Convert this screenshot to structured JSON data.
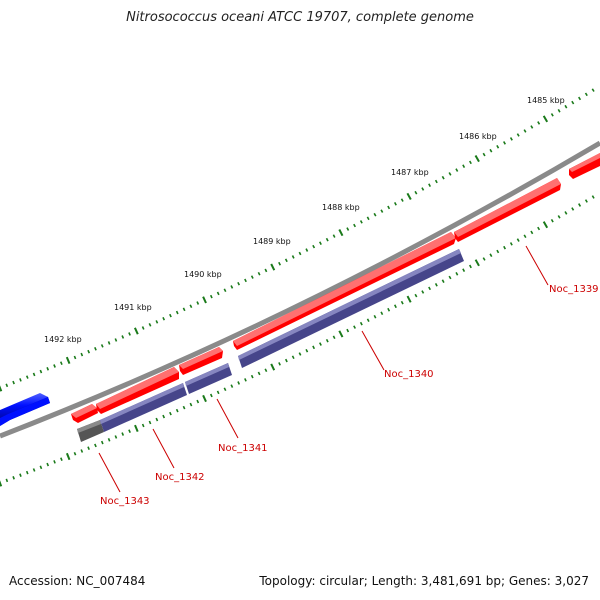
{
  "title": "Nitrosococcus oceani ATCC 19707, complete genome",
  "footer": {
    "accession": "Accession: NC_007484",
    "stats": "Topology: circular; Length: 3,481,691 bp; Genes: 3,027"
  },
  "colors": {
    "backbone": "#8a8a8a",
    "forward_gene": "#ff0000",
    "cds": "#4b4a8f",
    "other_feature": "#666666",
    "blue_feature": "#0010ff",
    "tick": "#1a7a1a",
    "gene_label": "#cc0000"
  },
  "scale": {
    "unit": "kbp",
    "labels": [
      "1485 kbp",
      "1486 kbp",
      "1487 kbp",
      "1488 kbp",
      "1489 kbp",
      "1490 kbp",
      "1491 kbp",
      "1492 kbp"
    ]
  },
  "genes": [
    {
      "name": "Noc_1339"
    },
    {
      "name": "Noc_1340"
    },
    {
      "name": "Noc_1341"
    },
    {
      "name": "Noc_1342"
    },
    {
      "name": "Noc_1343"
    }
  ]
}
